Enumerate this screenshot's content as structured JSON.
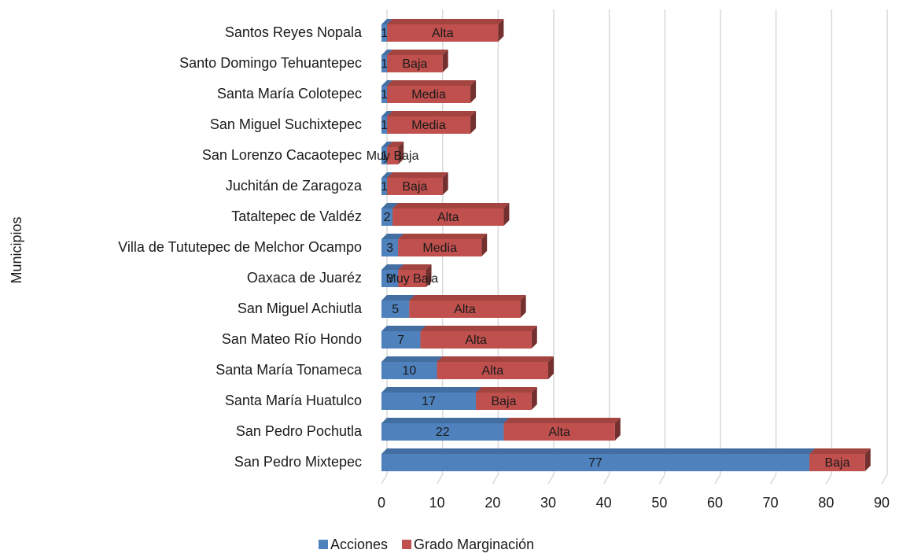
{
  "chart_data": {
    "type": "bar",
    "orientation": "horizontal",
    "stacked": true,
    "y_label": "Municipios",
    "categories": [
      "Santos Reyes Nopala",
      "Santo Domingo Tehuantepec",
      "Santa María Colotepec",
      "San Miguel Suchixtepec",
      "San Lorenzo Cacaotepec",
      "Juchitán de Zaragoza",
      "Tataltepec de Valdéz",
      "Villa de Tututepec de Melchor Ocampo",
      "Oaxaca de Juaréz",
      "San Miguel Achiutla",
      "San Mateo Río Hondo",
      "Santa María Tonameca",
      "Santa María Huatulco",
      "San Pedro Pochutla",
      "San Pedro Mixtepec"
    ],
    "series": [
      {
        "name": "Acciones",
        "color": "#4f81bd",
        "values": [
          1,
          1,
          1,
          1,
          1,
          1,
          2,
          3,
          3,
          5,
          7,
          10,
          17,
          22,
          77
        ]
      },
      {
        "name": "Grado Marginación",
        "color": "#c0504d",
        "values": [
          20,
          10,
          15,
          15,
          2,
          10,
          20,
          15,
          5,
          20,
          20,
          20,
          10,
          20,
          10
        ],
        "value_labels": [
          "Alta",
          "Baja",
          "Media",
          "Media",
          "Muy Baja",
          "Baja",
          "Alta",
          "Media",
          "Muy Baja",
          "Alta",
          "Alta",
          "Alta",
          "Baja",
          "Alta",
          "Baja"
        ]
      }
    ],
    "xlim": [
      0,
      90
    ],
    "xticks": [
      0,
      10,
      20,
      30,
      40,
      50,
      60,
      70,
      80,
      90
    ],
    "grid": true,
    "legend": "bottom"
  }
}
